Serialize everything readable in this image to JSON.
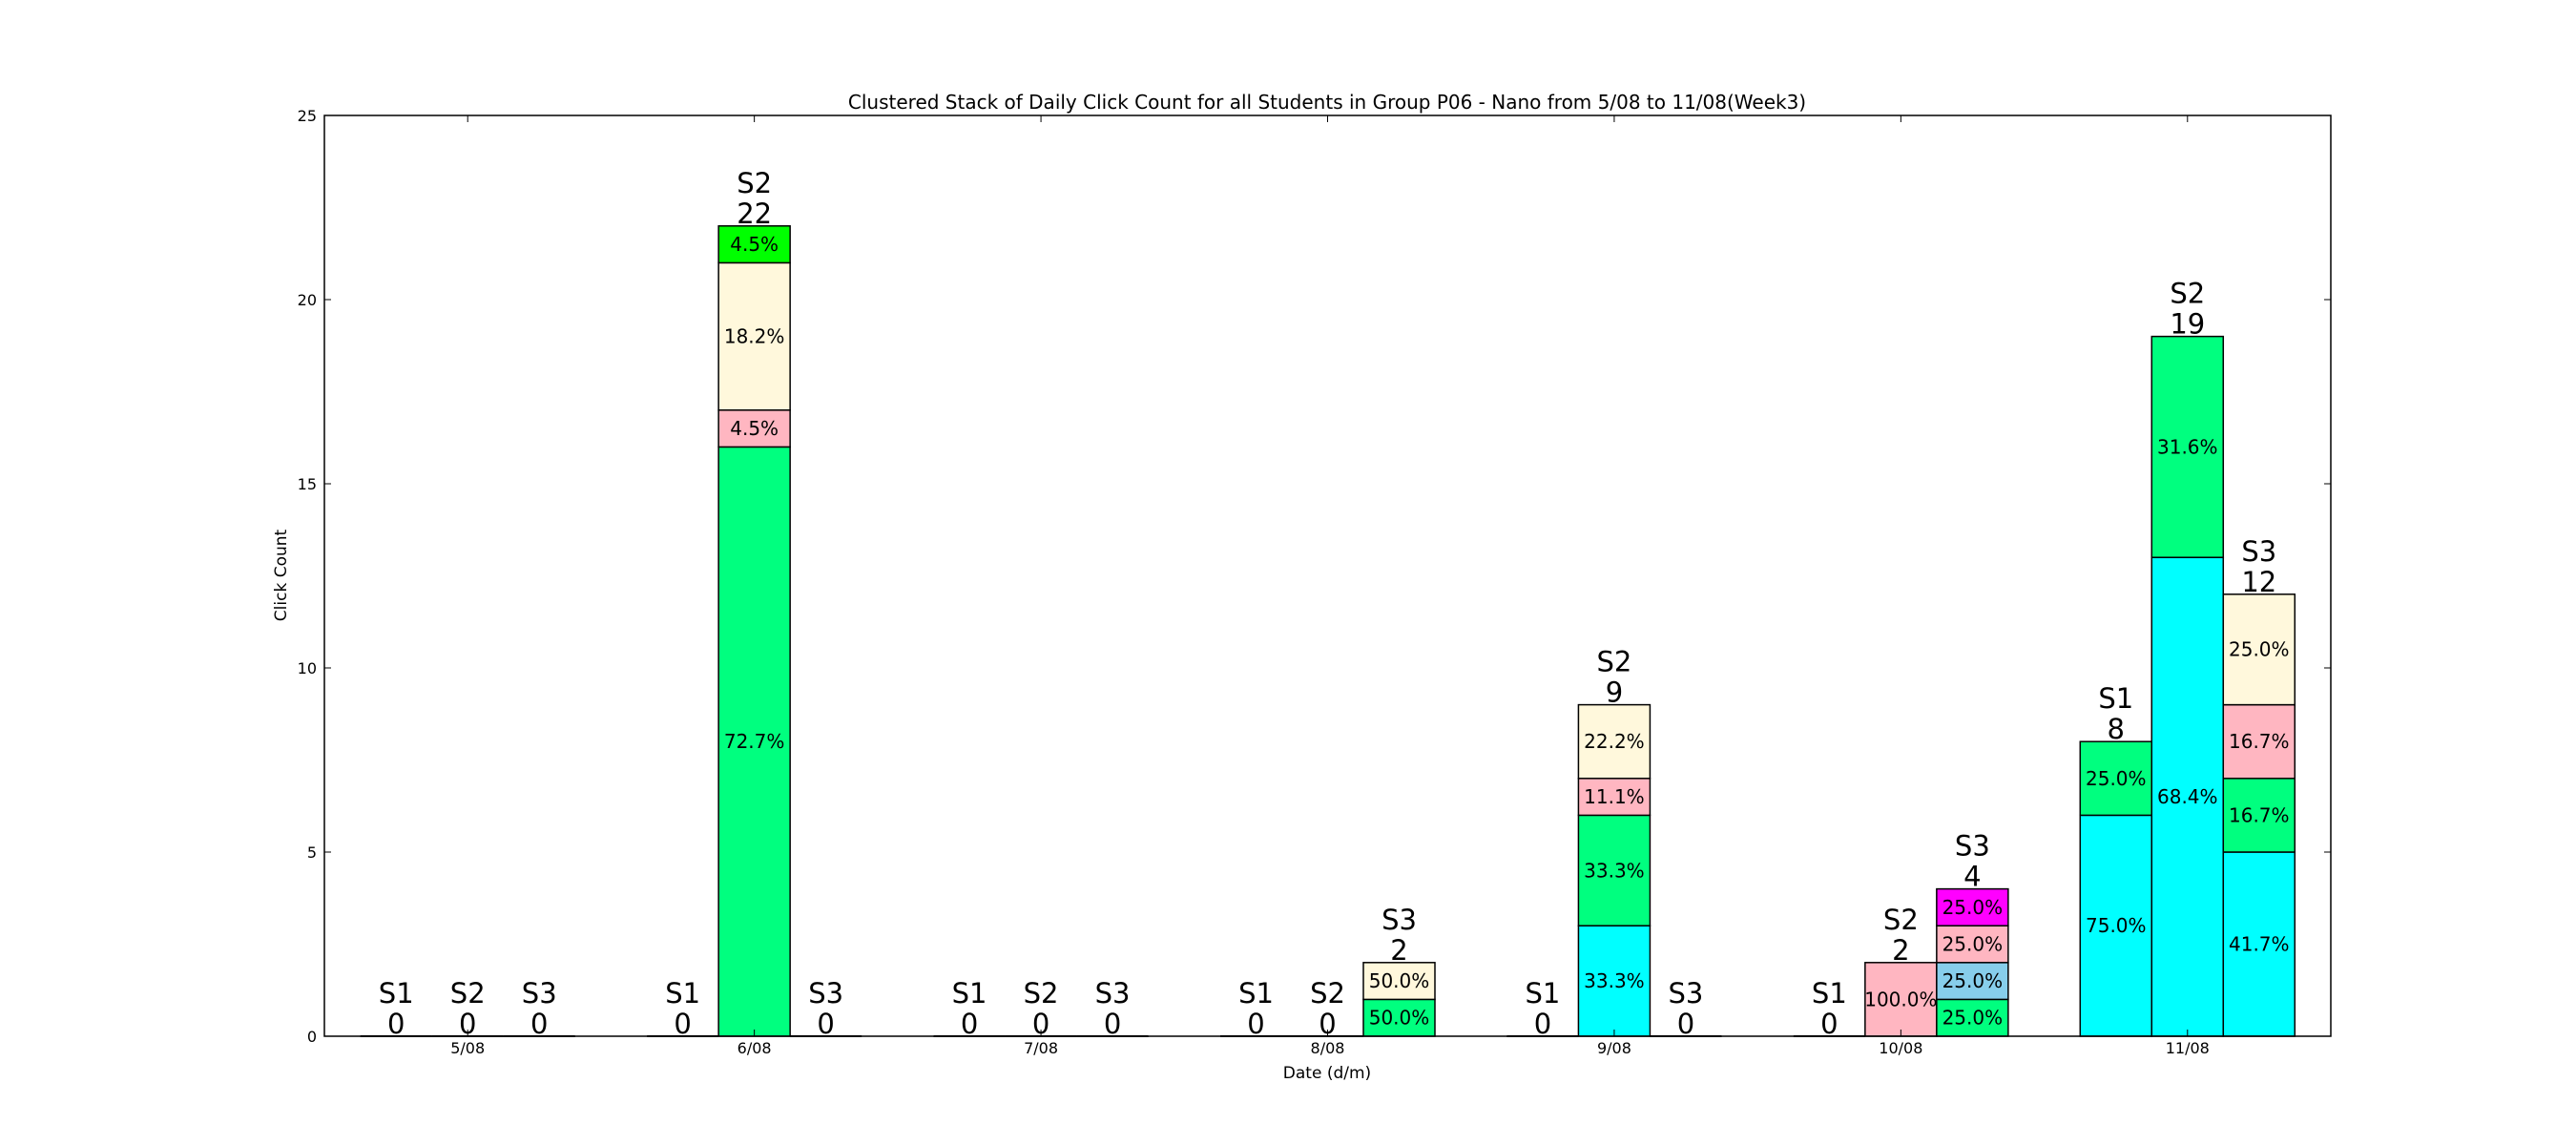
{
  "chart_data": {
    "type": "bar",
    "title": "Clustered Stack of Daily Click Count for all Students in Group P06 - Nano from 5/08 to 11/08(Week3)",
    "xlabel": "Date (d/m)",
    "ylabel": "Click Count",
    "ylim": [
      0,
      25
    ],
    "yticks": [
      0,
      5,
      10,
      15,
      20,
      25
    ],
    "grid": false,
    "categories": [
      "5/08",
      "6/08",
      "7/08",
      "8/08",
      "9/08",
      "10/08",
      "11/08"
    ],
    "students": [
      "S1",
      "S2",
      "S3"
    ],
    "colors": {
      "cyan": "#00ffff",
      "green": "#00ff7f",
      "pink": "#ffb6c1",
      "cream": "#fff8dc",
      "lime": "#00ff00",
      "skyblue": "#87ceeb",
      "magenta": "#ff00ff"
    },
    "groups": [
      {
        "date": "5/08",
        "bars": [
          {
            "student": "S1",
            "total": 0,
            "segments": []
          },
          {
            "student": "S2",
            "total": 0,
            "segments": []
          },
          {
            "student": "S3",
            "total": 0,
            "segments": []
          }
        ]
      },
      {
        "date": "6/08",
        "bars": [
          {
            "student": "S1",
            "total": 0,
            "segments": []
          },
          {
            "student": "S2",
            "total": 22,
            "segments": [
              {
                "value": 16,
                "label": "72.7%",
                "color": "green"
              },
              {
                "value": 1,
                "label": "4.5%",
                "color": "pink"
              },
              {
                "value": 4,
                "label": "18.2%",
                "color": "cream"
              },
              {
                "value": 1,
                "label": "4.5%",
                "color": "lime"
              }
            ]
          },
          {
            "student": "S3",
            "total": 0,
            "segments": []
          }
        ]
      },
      {
        "date": "7/08",
        "bars": [
          {
            "student": "S1",
            "total": 0,
            "segments": []
          },
          {
            "student": "S2",
            "total": 0,
            "segments": []
          },
          {
            "student": "S3",
            "total": 0,
            "segments": []
          }
        ]
      },
      {
        "date": "8/08",
        "bars": [
          {
            "student": "S1",
            "total": 0,
            "segments": []
          },
          {
            "student": "S2",
            "total": 0,
            "segments": []
          },
          {
            "student": "S3",
            "total": 2,
            "segments": [
              {
                "value": 1,
                "label": "50.0%",
                "color": "green"
              },
              {
                "value": 1,
                "label": "50.0%",
                "color": "cream"
              }
            ]
          }
        ]
      },
      {
        "date": "9/08",
        "bars": [
          {
            "student": "S1",
            "total": 0,
            "segments": []
          },
          {
            "student": "S2",
            "total": 9,
            "segments": [
              {
                "value": 3,
                "label": "33.3%",
                "color": "cyan"
              },
              {
                "value": 3,
                "label": "33.3%",
                "color": "green"
              },
              {
                "value": 1,
                "label": "11.1%",
                "color": "pink"
              },
              {
                "value": 2,
                "label": "22.2%",
                "color": "cream"
              }
            ]
          },
          {
            "student": "S3",
            "total": 0,
            "segments": []
          }
        ]
      },
      {
        "date": "10/08",
        "bars": [
          {
            "student": "S1",
            "total": 0,
            "segments": []
          },
          {
            "student": "S2",
            "total": 2,
            "segments": [
              {
                "value": 2,
                "label": "100.0%",
                "color": "pink"
              }
            ]
          },
          {
            "student": "S3",
            "total": 4,
            "segments": [
              {
                "value": 1,
                "label": "25.0%",
                "color": "green"
              },
              {
                "value": 1,
                "label": "25.0%",
                "color": "skyblue"
              },
              {
                "value": 1,
                "label": "25.0%",
                "color": "pink"
              },
              {
                "value": 1,
                "label": "25.0%",
                "color": "magenta"
              }
            ]
          }
        ]
      },
      {
        "date": "11/08",
        "bars": [
          {
            "student": "S1",
            "total": 8,
            "segments": [
              {
                "value": 6,
                "label": "75.0%",
                "color": "cyan"
              },
              {
                "value": 2,
                "label": "25.0%",
                "color": "green"
              }
            ]
          },
          {
            "student": "S2",
            "total": 19,
            "segments": [
              {
                "value": 13,
                "label": "68.4%",
                "color": "cyan"
              },
              {
                "value": 6,
                "label": "31.6%",
                "color": "green"
              }
            ]
          },
          {
            "student": "S3",
            "total": 12,
            "segments": [
              {
                "value": 5,
                "label": "41.7%",
                "color": "cyan"
              },
              {
                "value": 2,
                "label": "16.7%",
                "color": "green"
              },
              {
                "value": 2,
                "label": "16.7%",
                "color": "pink"
              },
              {
                "value": 3,
                "label": "25.0%",
                "color": "cream"
              }
            ]
          }
        ]
      }
    ]
  }
}
